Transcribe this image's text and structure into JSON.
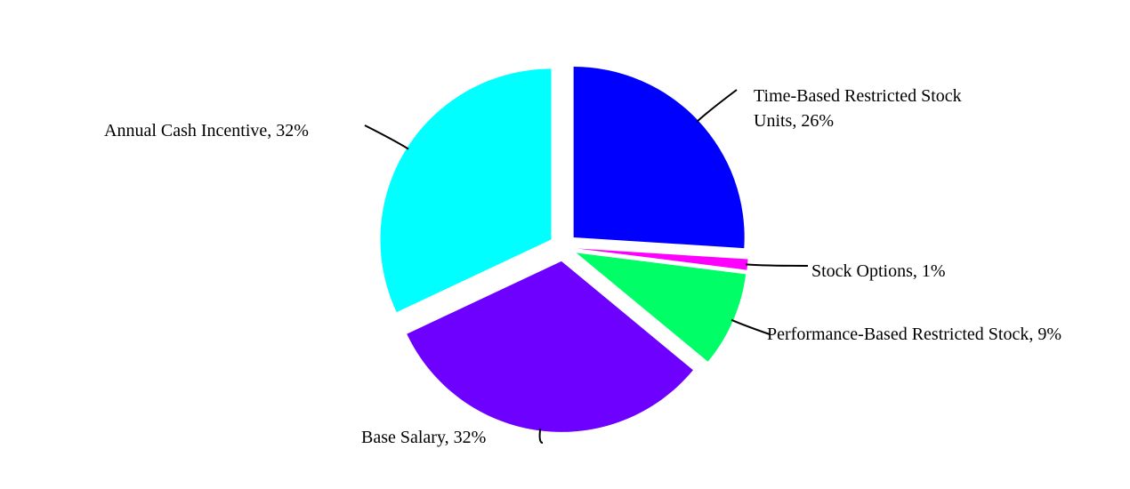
{
  "chart_data": {
    "type": "pie",
    "values": [
      26,
      1,
      9,
      32,
      32
    ],
    "value_labels": [
      "Time-Based Restricted Stock Units, 26%",
      "Stock Options, 1%",
      "Performance-Based Restricted Stock, 9%",
      "Base Salary, 32%",
      "Annual Cash Incentive, 32%"
    ],
    "colors": [
      "#0000ff",
      "#ff00ff",
      "#00ff66",
      "#6e00ff",
      "#00ffff"
    ]
  }
}
